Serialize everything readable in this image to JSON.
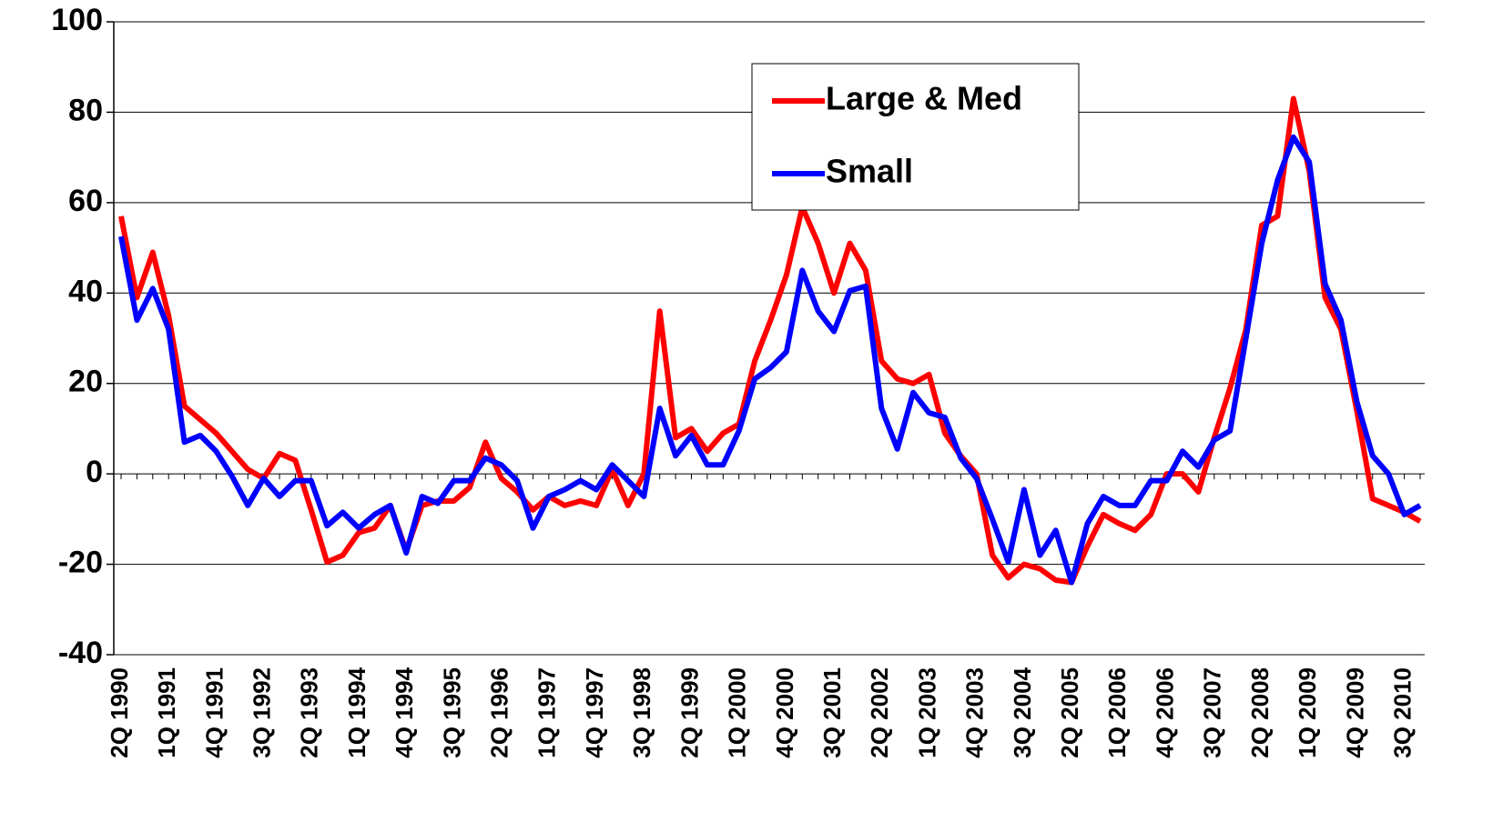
{
  "chart_data": {
    "type": "line",
    "categories": [
      "2Q 1990",
      null,
      null,
      "1Q 1991",
      null,
      null,
      "4Q 1991",
      null,
      null,
      "3Q 1992",
      null,
      null,
      "2Q 1993",
      null,
      null,
      "1Q 1994",
      null,
      null,
      "4Q 1994",
      null,
      null,
      "3Q 1995",
      null,
      null,
      "2Q 1996",
      null,
      null,
      "1Q 1997",
      null,
      null,
      "4Q 1997",
      null,
      null,
      "3Q 1998",
      null,
      null,
      "2Q 1999",
      null,
      null,
      "1Q 2000",
      null,
      null,
      "4Q 2000",
      null,
      null,
      "3Q 2001",
      null,
      null,
      "2Q 2002",
      null,
      null,
      "1Q 2003",
      null,
      null,
      "4Q 2003",
      null,
      null,
      "3Q 2004",
      null,
      null,
      "2Q 2005",
      null,
      null,
      "1Q 2006",
      null,
      null,
      "4Q 2006",
      null,
      null,
      "3Q 2007",
      null,
      null,
      "2Q 2008",
      null,
      null,
      "1Q 2009",
      null,
      null,
      "4Q 2009",
      null,
      null,
      "3Q 2010",
      null
    ],
    "series": [
      {
        "name": "Large & Med",
        "color": "#ff0000",
        "values": [
          57,
          39,
          49,
          35,
          15,
          12,
          9,
          5,
          1,
          -1,
          4.5,
          3,
          -8,
          -19.5,
          -18,
          -13,
          -12,
          -7,
          -17,
          -7,
          -6,
          -6,
          -3,
          7,
          -1,
          -4,
          -8,
          -5,
          -7,
          -6,
          -7,
          1,
          -7,
          0,
          36,
          8,
          10,
          5,
          9,
          11,
          25,
          34,
          44,
          59,
          51,
          40,
          51,
          45,
          25,
          21,
          20,
          22,
          9,
          4,
          0,
          -18,
          -23,
          -20,
          -21,
          -23.5,
          -24,
          -16,
          -9,
          -11,
          -12.5,
          -9,
          0,
          0,
          -4,
          8,
          19,
          32,
          55,
          57,
          83,
          67,
          39,
          32,
          14,
          -5.5,
          -7,
          -8.5,
          -10.5
        ]
      },
      {
        "name": "Small",
        "color": "#0000ff",
        "values": [
          52.5,
          34,
          41,
          32,
          7,
          8.5,
          5,
          -0.5,
          -7,
          -1,
          -5,
          -1.5,
          -1.5,
          -11.5,
          -8.5,
          -12,
          -9,
          -7,
          -17.5,
          -5,
          -6.5,
          -1.5,
          -1.5,
          3.5,
          2,
          -1.5,
          -12,
          -5,
          -3.5,
          -1.5,
          -3.5,
          2,
          -1.5,
          -5,
          14.5,
          4,
          8.5,
          2,
          2,
          9.5,
          21,
          23.5,
          27,
          45,
          36,
          31.5,
          40.5,
          41.5,
          14.5,
          5.5,
          18,
          13.5,
          12.5,
          3.5,
          -1,
          -10,
          -19.5,
          -3.5,
          -18,
          -12.5,
          -24,
          -11,
          -5,
          -7,
          -7,
          -1.5,
          -1.5,
          5,
          1.5,
          7.5,
          9.5,
          30,
          51,
          65,
          74.5,
          69,
          42,
          34,
          16,
          4,
          0,
          -9,
          -7
        ]
      }
    ],
    "ylim": [
      -40,
      100
    ],
    "yticks": [
      -40,
      -20,
      0,
      20,
      40,
      60,
      80,
      100
    ],
    "grid": true
  }
}
